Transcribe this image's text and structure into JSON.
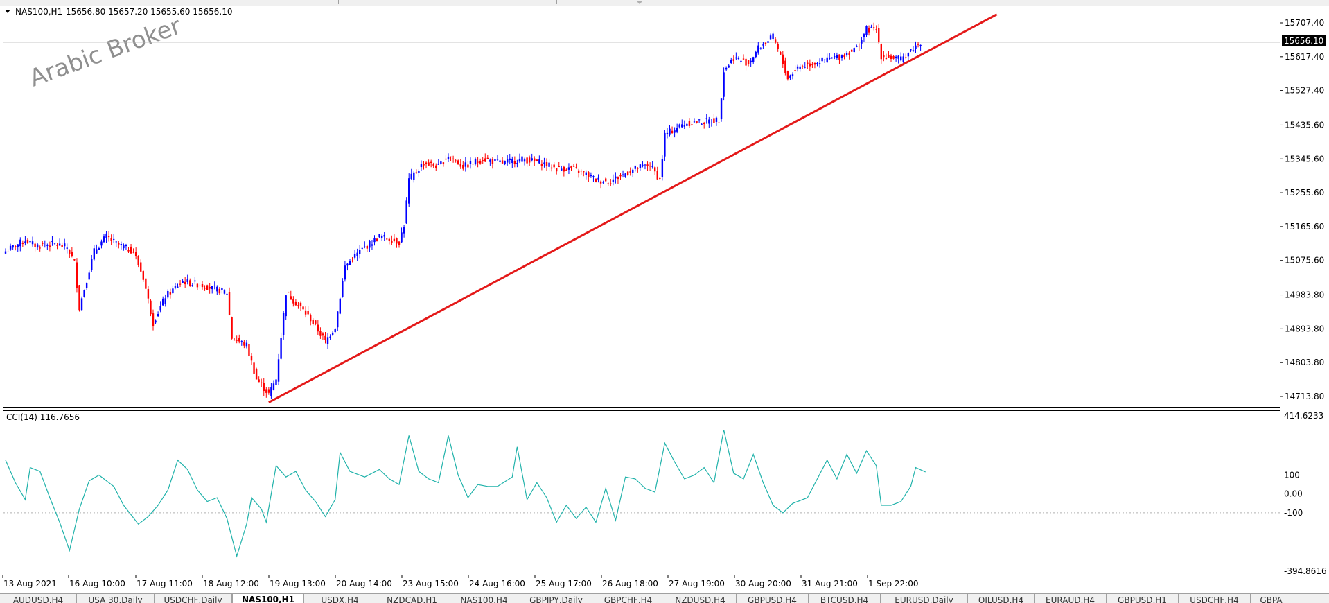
{
  "symbol_header": "NAS100,H1",
  "ohlc_text": "15656.80 15657.20 15655.60 15656.10",
  "watermark": "Arabic Broker",
  "current_price": "15656.10",
  "colors": {
    "bull": "#0000ff",
    "bear": "#ff0000",
    "trendline": "#e41919",
    "cci": "#20b2aa",
    "price_tag_bg": "#000000"
  },
  "price_axis": {
    "ticks": [
      "15707.40",
      "15617.40",
      "15527.40",
      "15435.60",
      "15345.60",
      "15255.60",
      "15165.60",
      "15075.60",
      "14983.80",
      "14893.80",
      "14803.80",
      "14713.80"
    ]
  },
  "indicator": {
    "label": "CCI(14) 116.7656",
    "max_label": "414.6233",
    "min_label": "-394.8616",
    "levels": [
      "100",
      "0.00",
      "-100"
    ]
  },
  "time_axis": {
    "labels": [
      "13 Aug 2021",
      "16 Aug 10:00",
      "17 Aug 11:00",
      "18 Aug 12:00",
      "19 Aug 13:00",
      "20 Aug 14:00",
      "23 Aug 15:00",
      "24 Aug 16:00",
      "25 Aug 17:00",
      "26 Aug 18:00",
      "27 Aug 19:00",
      "30 Aug 20:00",
      "31 Aug 21:00",
      "1 Sep 22:00"
    ]
  },
  "tabs": [
    {
      "label": "AUDUSD,H4"
    },
    {
      "label": "USA 30,Daily"
    },
    {
      "label": "USDCHF,Daily"
    },
    {
      "label": "NAS100,H1",
      "active": true
    },
    {
      "label": "USDX,H4"
    },
    {
      "label": "NZDCAD,H1"
    },
    {
      "label": "NAS100,H4"
    },
    {
      "label": "GBPJPY,Daily"
    },
    {
      "label": "GBPCHF,H4"
    },
    {
      "label": "NZDUSD,H4"
    },
    {
      "label": "GBPUSD,H4"
    },
    {
      "label": "BTCUSD,H4"
    },
    {
      "label": "EURUSD,Daily"
    },
    {
      "label": "OILUSD,H4"
    },
    {
      "label": "EURAUD,H4"
    },
    {
      "label": "GBPUSD,H1"
    },
    {
      "label": "USDCHF,H4"
    },
    {
      "label": "GBPA"
    }
  ],
  "chart_data": {
    "type": "candlestick",
    "symbol": "NAS100",
    "timeframe": "H1",
    "last": {
      "open": 15656.8,
      "high": 15657.2,
      "low": 15655.6,
      "close": 15656.1
    },
    "price_range": [
      14690,
      15730
    ],
    "key_path": [
      [
        0,
        15100
      ],
      [
        8,
        15130
      ],
      [
        12,
        15115
      ],
      [
        20,
        15120
      ],
      [
        25,
        15110
      ],
      [
        28,
        15070
      ],
      [
        30,
        14950
      ],
      [
        36,
        15100
      ],
      [
        41,
        15140
      ],
      [
        45,
        15120
      ],
      [
        52,
        15100
      ],
      [
        56,
        15030
      ],
      [
        60,
        14910
      ],
      [
        65,
        14980
      ],
      [
        72,
        15020
      ],
      [
        80,
        15010
      ],
      [
        90,
        14990
      ],
      [
        92,
        14870
      ],
      [
        98,
        14850
      ],
      [
        102,
        14760
      ],
      [
        107,
        14720
      ],
      [
        110,
        14760
      ],
      [
        114,
        14990
      ],
      [
        120,
        14950
      ],
      [
        124,
        14920
      ],
      [
        130,
        14860
      ],
      [
        134,
        14900
      ],
      [
        138,
        15060
      ],
      [
        144,
        15100
      ],
      [
        152,
        15140
      ],
      [
        160,
        15125
      ],
      [
        162,
        15170
      ],
      [
        164,
        15290
      ],
      [
        170,
        15335
      ],
      [
        176,
        15325
      ],
      [
        180,
        15355
      ],
      [
        186,
        15325
      ],
      [
        194,
        15345
      ],
      [
        202,
        15335
      ],
      [
        210,
        15345
      ],
      [
        218,
        15335
      ],
      [
        224,
        15320
      ],
      [
        230,
        15320
      ],
      [
        236,
        15305
      ],
      [
        240,
        15290
      ],
      [
        245,
        15285
      ],
      [
        250,
        15300
      ],
      [
        256,
        15320
      ],
      [
        262,
        15330
      ],
      [
        266,
        15290
      ],
      [
        268,
        15410
      ],
      [
        276,
        15440
      ],
      [
        284,
        15445
      ],
      [
        290,
        15450
      ],
      [
        292,
        15580
      ],
      [
        296,
        15615
      ],
      [
        302,
        15600
      ],
      [
        306,
        15640
      ],
      [
        312,
        15670
      ],
      [
        316,
        15600
      ],
      [
        318,
        15560
      ],
      [
        322,
        15590
      ],
      [
        328,
        15600
      ],
      [
        334,
        15610
      ],
      [
        340,
        15620
      ],
      [
        346,
        15640
      ],
      [
        350,
        15690
      ],
      [
        354,
        15690
      ],
      [
        356,
        15620
      ],
      [
        360,
        15615
      ],
      [
        364,
        15610
      ],
      [
        368,
        15635
      ],
      [
        372,
        15656
      ]
    ],
    "trendline": {
      "from": {
        "bar": 107,
        "price": 14698
      },
      "to": {
        "bar": 403,
        "price": 15730
      }
    },
    "cci": {
      "name": "CCI(14)",
      "value": 116.7656,
      "range": [
        -394.8616,
        414.6233
      ],
      "levels": [
        100,
        0,
        -100
      ],
      "points": [
        [
          0,
          180
        ],
        [
          4,
          60
        ],
        [
          8,
          -30
        ],
        [
          10,
          140
        ],
        [
          14,
          120
        ],
        [
          18,
          -20
        ],
        [
          22,
          -150
        ],
        [
          26,
          -300
        ],
        [
          30,
          -80
        ],
        [
          34,
          70
        ],
        [
          38,
          100
        ],
        [
          44,
          40
        ],
        [
          48,
          -60
        ],
        [
          54,
          -160
        ],
        [
          58,
          -120
        ],
        [
          62,
          -60
        ],
        [
          66,
          20
        ],
        [
          70,
          180
        ],
        [
          74,
          130
        ],
        [
          78,
          20
        ],
        [
          82,
          -40
        ],
        [
          86,
          -20
        ],
        [
          90,
          -130
        ],
        [
          94,
          -330
        ],
        [
          98,
          -160
        ],
        [
          100,
          -20
        ],
        [
          104,
          -80
        ],
        [
          106,
          -150
        ],
        [
          110,
          150
        ],
        [
          114,
          90
        ],
        [
          118,
          120
        ],
        [
          122,
          20
        ],
        [
          126,
          -40
        ],
        [
          130,
          -120
        ],
        [
          134,
          -30
        ],
        [
          136,
          220
        ],
        [
          140,
          120
        ],
        [
          146,
          90
        ],
        [
          152,
          130
        ],
        [
          156,
          80
        ],
        [
          160,
          50
        ],
        [
          164,
          310
        ],
        [
          168,
          120
        ],
        [
          172,
          80
        ],
        [
          176,
          60
        ],
        [
          180,
          310
        ],
        [
          184,
          100
        ],
        [
          188,
          -20
        ],
        [
          192,
          50
        ],
        [
          196,
          40
        ],
        [
          200,
          40
        ],
        [
          206,
          90
        ],
        [
          208,
          250
        ],
        [
          212,
          -30
        ],
        [
          216,
          60
        ],
        [
          220,
          -20
        ],
        [
          224,
          -150
        ],
        [
          228,
          -60
        ],
        [
          232,
          -130
        ],
        [
          236,
          -70
        ],
        [
          240,
          -150
        ],
        [
          244,
          30
        ],
        [
          248,
          -140
        ],
        [
          252,
          90
        ],
        [
          256,
          80
        ],
        [
          260,
          30
        ],
        [
          264,
          10
        ],
        [
          268,
          270
        ],
        [
          272,
          170
        ],
        [
          276,
          80
        ],
        [
          280,
          100
        ],
        [
          284,
          140
        ],
        [
          288,
          60
        ],
        [
          292,
          340
        ],
        [
          296,
          110
        ],
        [
          300,
          80
        ],
        [
          304,
          210
        ],
        [
          308,
          60
        ],
        [
          312,
          -60
        ],
        [
          316,
          -100
        ],
        [
          320,
          -50
        ],
        [
          326,
          -20
        ],
        [
          330,
          80
        ],
        [
          334,
          180
        ],
        [
          338,
          80
        ],
        [
          342,
          210
        ],
        [
          346,
          110
        ],
        [
          350,
          230
        ],
        [
          354,
          150
        ],
        [
          356,
          -60
        ],
        [
          360,
          -60
        ],
        [
          364,
          -40
        ],
        [
          368,
          40
        ],
        [
          370,
          140
        ],
        [
          374,
          117
        ]
      ]
    }
  }
}
